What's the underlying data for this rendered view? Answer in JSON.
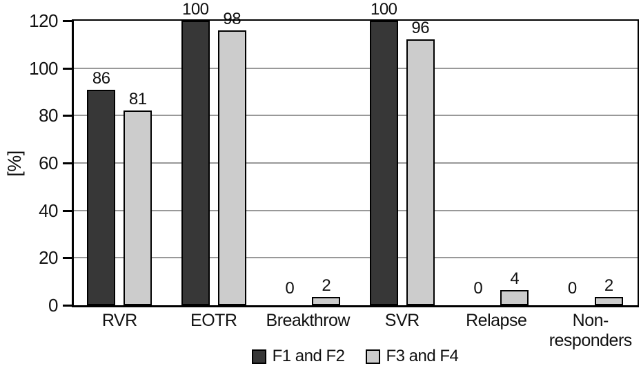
{
  "colors": {
    "background": "#ffffff",
    "axis": "#000000",
    "grid": "#999999",
    "text": "#111111",
    "series_dark": "#373737",
    "series_light": "#cccccc"
  },
  "chart_data": {
    "type": "bar",
    "title": "",
    "xlabel": "",
    "ylabel": "[%]",
    "ylim": [
      0,
      120
    ],
    "yticks": [
      0,
      20,
      40,
      60,
      80,
      100,
      120
    ],
    "grid": true,
    "legend_position": "bottom",
    "categories": [
      "RVR",
      "EOTR",
      "Breakthrow",
      "SVR",
      "Relapse",
      "Non-\nresponders"
    ],
    "series": [
      {
        "name": "F1 and F2",
        "color": "#373737",
        "values": [
          86,
          100,
          0,
          100,
          0,
          0
        ],
        "drawn_heights": [
          91,
          120,
          0,
          120,
          0,
          0
        ]
      },
      {
        "name": "F3 and F4",
        "color": "#cccccc",
        "values": [
          81,
          98,
          2,
          96,
          4,
          2
        ],
        "drawn_heights": [
          82,
          116,
          3.4,
          112,
          6.3,
          3.4
        ]
      }
    ]
  }
}
